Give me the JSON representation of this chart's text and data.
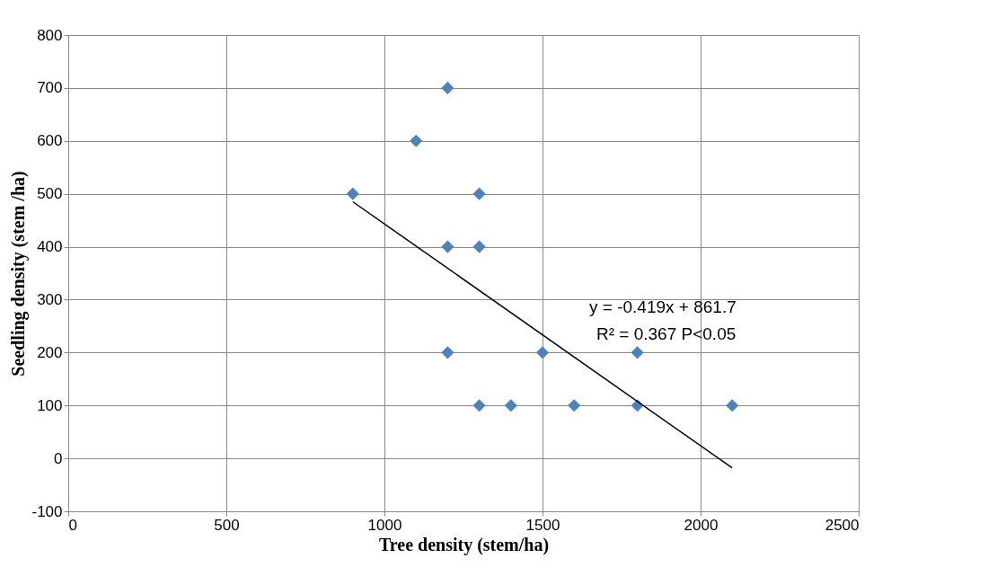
{
  "chart_data": {
    "type": "scatter",
    "xlabel": "Tree density (stem/ha)",
    "ylabel": "Seedling density (stem /ha)",
    "xlim": [
      0,
      2500
    ],
    "ylim": [
      -100,
      800
    ],
    "xticks": [
      0,
      500,
      1000,
      1500,
      2000,
      2500
    ],
    "yticks": [
      -100,
      0,
      100,
      200,
      300,
      400,
      500,
      600,
      700,
      800
    ],
    "grid": true,
    "series": [
      {
        "type": "scatter",
        "color": "#4f81bd",
        "marker": "diamond",
        "x": [
          900,
          1100,
          1200,
          1200,
          1200,
          1300,
          1300,
          1300,
          1400,
          1500,
          1600,
          1800,
          1800,
          2100
        ],
        "values": [
          500,
          600,
          700,
          400,
          200,
          500,
          400,
          100,
          100,
          200,
          100,
          200,
          100,
          100
        ]
      },
      {
        "type": "line",
        "color": "#000000",
        "marker": "none",
        "x": [
          900,
          2100
        ],
        "values": [
          485,
          -18
        ]
      }
    ],
    "annotations": [
      "y = -0.419x + 861.7",
      "R² = 0.367  P<0.05"
    ]
  }
}
